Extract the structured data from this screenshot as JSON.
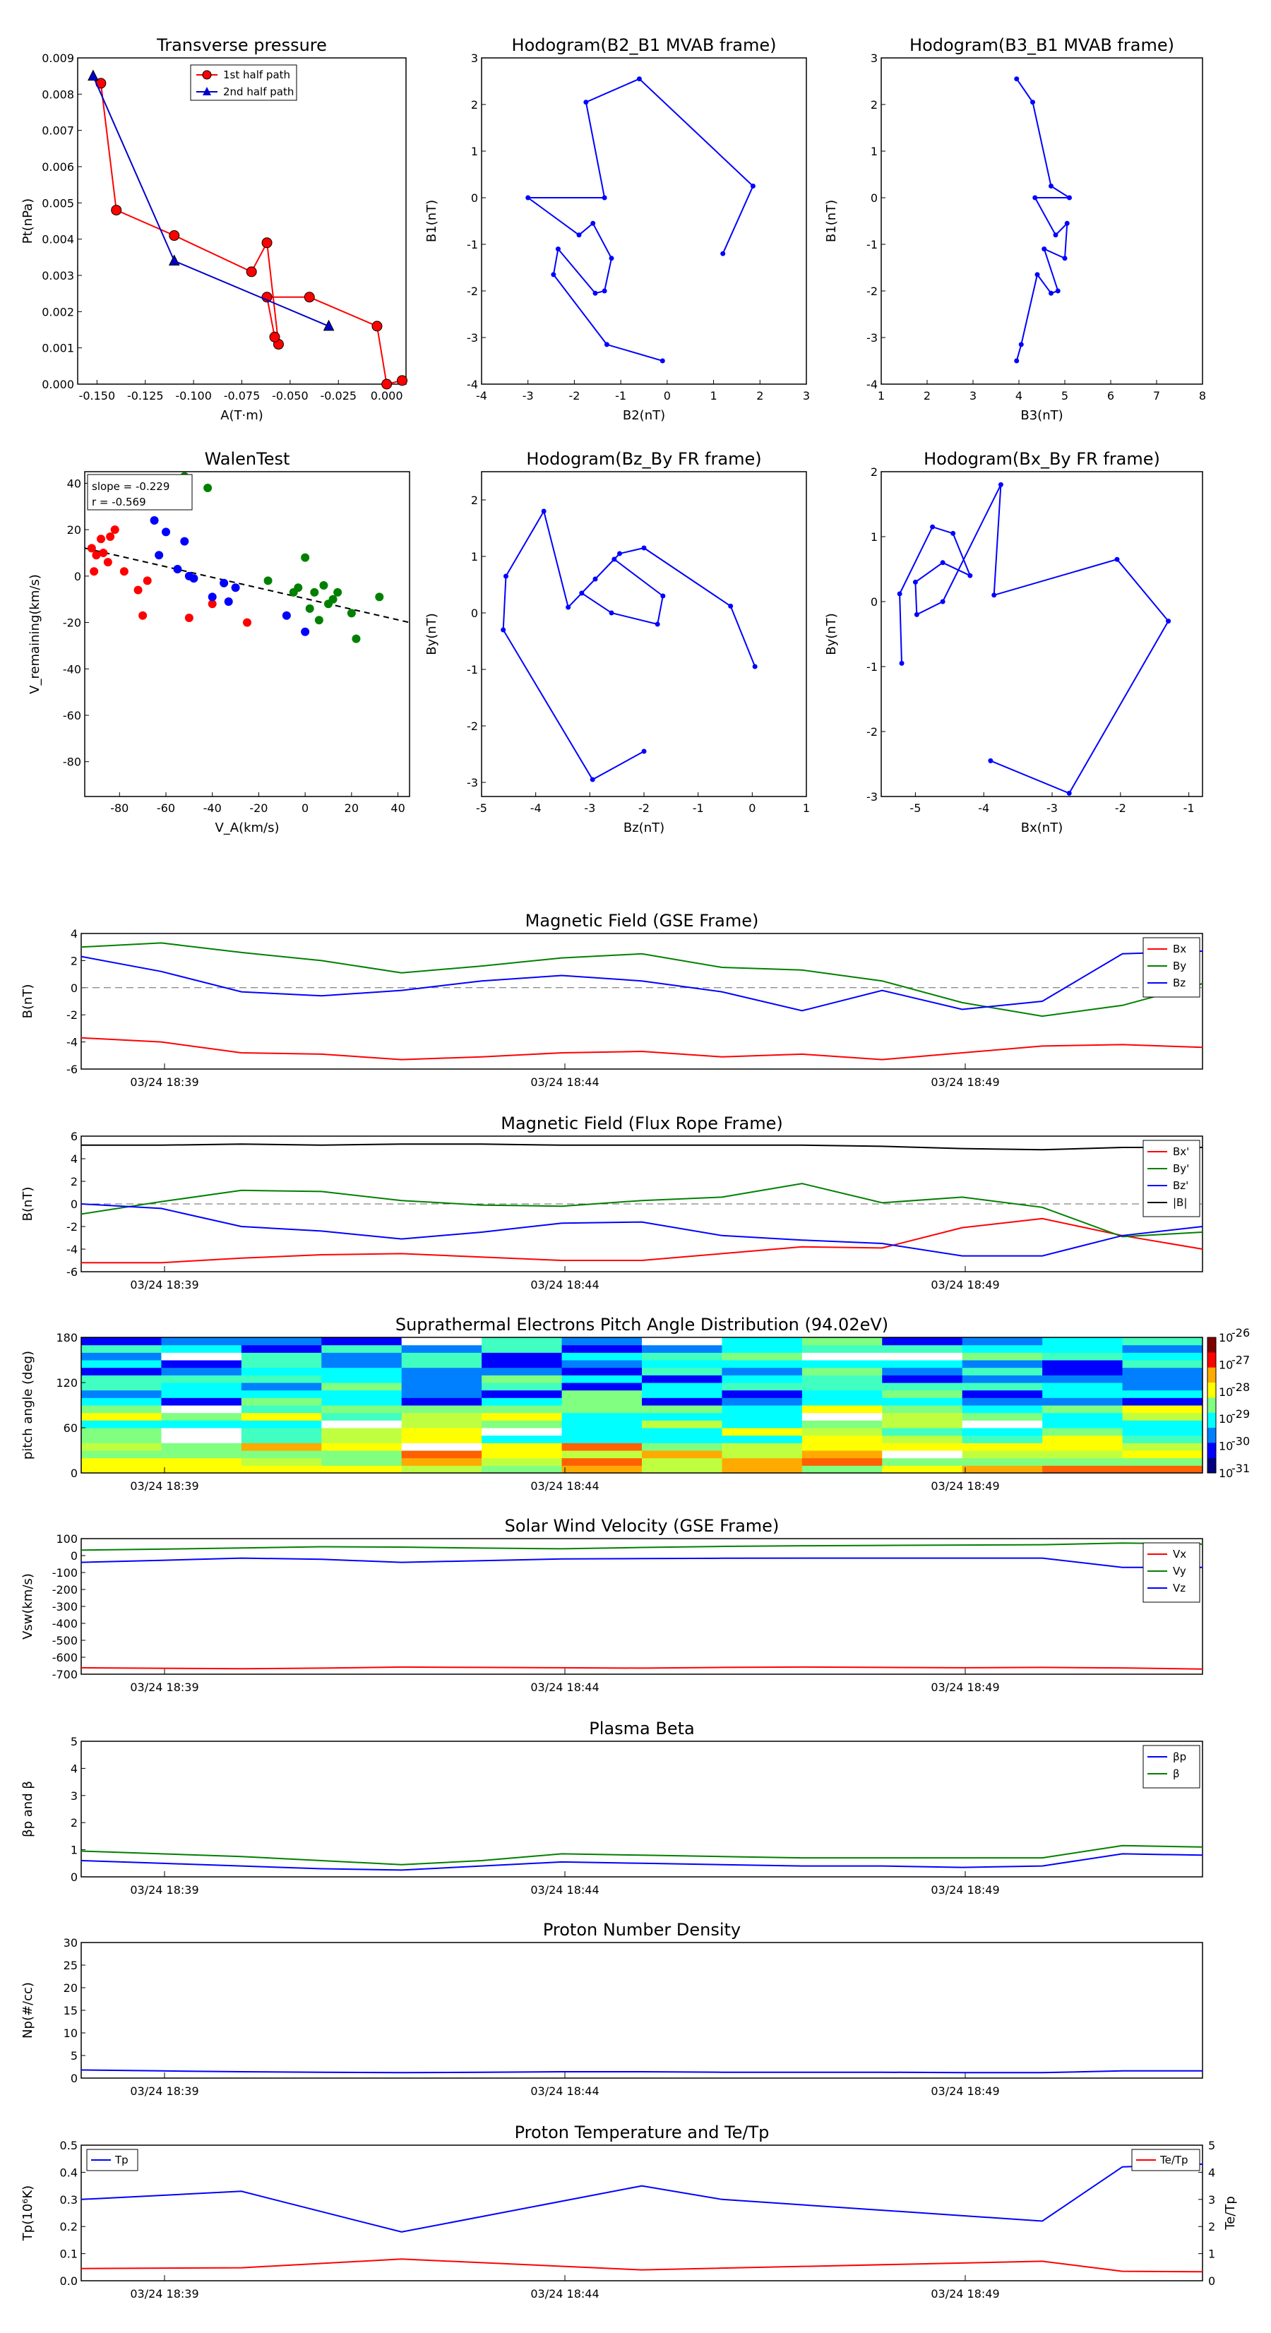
{
  "time_ticks": [
    "03/24 18:39",
    "03/24 18:44",
    "03/24 18:49"
  ],
  "charts": {
    "transverse_pressure": {
      "type": "scatter-line",
      "title": "Transverse pressure",
      "xlabel": "A(T·m)",
      "ylabel": "Pt(nPa)",
      "xlim": [
        -0.16,
        0.01
      ],
      "ylim": [
        0.0,
        0.009
      ],
      "xticks": [
        "-0.150",
        "-0.125",
        "-0.100",
        "-0.075",
        "-0.050",
        "-0.025",
        "0.000"
      ],
      "yticks": [
        "0.000",
        "0.001",
        "0.002",
        "0.003",
        "0.004",
        "0.005",
        "0.006",
        "0.007",
        "0.008",
        "0.009"
      ],
      "legend": [
        "1st half path",
        "2nd half path"
      ],
      "series": [
        {
          "name": "1st half path",
          "color": "#ff0000",
          "marker": "circle",
          "x": [
            -0.148,
            -0.14,
            -0.11,
            -0.07,
            -0.062,
            -0.056,
            -0.058,
            -0.062,
            -0.04,
            -0.005,
            0.0,
            0.008
          ],
          "y": [
            0.0083,
            0.0048,
            0.0041,
            0.0031,
            0.0039,
            0.0011,
            0.0013,
            0.0024,
            0.0024,
            0.0016,
            0.0,
            0.0001
          ]
        },
        {
          "name": "2nd half path",
          "color": "#0000cc",
          "marker": "triangle",
          "x": [
            -0.152,
            -0.11,
            -0.03
          ],
          "y": [
            0.0085,
            0.0034,
            0.0016
          ]
        }
      ]
    },
    "hodogram_b2_b1": {
      "type": "line",
      "title": "Hodogram(B2_B1 MVAB frame)",
      "xlabel": "B2(nT)",
      "ylabel": "B1(nT)",
      "xlim": [
        -4,
        3
      ],
      "ylim": [
        -4,
        3
      ],
      "xticks": [
        "-4",
        "-3",
        "-2",
        "-1",
        "0",
        "1",
        "2",
        "3"
      ],
      "yticks": [
        "-4",
        "-3",
        "-2",
        "-1",
        "0",
        "1",
        "2",
        "3"
      ],
      "x": [
        1.2,
        1.85,
        -0.6,
        -1.75,
        -1.35,
        -3.0,
        -1.9,
        -1.6,
        -1.2,
        -1.35,
        -1.55,
        -2.35,
        -2.45,
        -1.3,
        -0.1
      ],
      "y": [
        -1.2,
        0.25,
        2.55,
        2.05,
        0.0,
        0.0,
        -0.8,
        -0.55,
        -1.3,
        -2.0,
        -2.05,
        -1.1,
        -1.65,
        -3.15,
        -3.5
      ]
    },
    "hodogram_b3_b1": {
      "type": "line",
      "title": "Hodogram(B3_B1 MVAB frame)",
      "xlabel": "B3(nT)",
      "ylabel": "B1(nT)",
      "xlim": [
        1,
        8
      ],
      "ylim": [
        -4,
        3
      ],
      "xticks": [
        "1",
        "2",
        "3",
        "4",
        "5",
        "6",
        "7",
        "8"
      ],
      "yticks": [
        "-4",
        "-3",
        "-2",
        "-1",
        "0",
        "1",
        "2",
        "3"
      ],
      "x": [
        3.95,
        4.3,
        4.7,
        5.1,
        4.35,
        4.8,
        5.05,
        5.0,
        4.55,
        4.85,
        4.7,
        4.4,
        4.05,
        3.95
      ],
      "y": [
        2.55,
        2.05,
        0.25,
        0.0,
        0.0,
        -0.8,
        -0.55,
        -1.3,
        -1.1,
        -2.0,
        -2.05,
        -1.65,
        -3.15,
        -3.5
      ]
    },
    "walen_test": {
      "type": "scatter",
      "title": "WalenTest",
      "xlabel": "V_A(km/s)",
      "ylabel": "V_remaining(km/s)",
      "xlim": [
        -95,
        45
      ],
      "ylim": [
        -95,
        45
      ],
      "xticks": [
        "-80",
        "-60",
        "-40",
        "-20",
        "0",
        "20",
        "40"
      ],
      "yticks": [
        "-80",
        "-60",
        "-40",
        "-20",
        "0",
        "20",
        "40"
      ],
      "annotation": [
        "slope = -0.229",
        "r = -0.569"
      ],
      "fit_line": {
        "slope": -0.229,
        "intercept": -9.7
      },
      "series": [
        {
          "color": "#ff0000",
          "x": [
            -92,
            -91,
            -90,
            -88,
            -87,
            -85,
            -84,
            -82,
            -78,
            -72,
            -70,
            -68,
            -50,
            -40,
            -25
          ],
          "y": [
            12,
            2,
            9,
            16,
            10,
            6,
            17,
            20,
            2,
            -6,
            -17,
            -2,
            -18,
            -12,
            -20
          ]
        },
        {
          "color": "#0000ff",
          "x": [
            -65,
            -63,
            -60,
            -55,
            -52,
            -50,
            -48,
            -40,
            -35,
            -33,
            -30,
            -8,
            0
          ],
          "y": [
            24,
            9,
            19,
            3,
            15,
            0,
            -1,
            -9,
            -3,
            -11,
            -5,
            -17,
            -24
          ]
        },
        {
          "color": "#008000",
          "x": [
            -52,
            -42,
            -16,
            -5,
            -3,
            0,
            2,
            4,
            6,
            8,
            10,
            12,
            14,
            20,
            22,
            32
          ],
          "y": [
            43,
            38,
            -2,
            -7,
            -5,
            8,
            -14,
            -7,
            -19,
            -4,
            -12,
            -10,
            -7,
            -16,
            -27,
            -9
          ]
        }
      ]
    },
    "hodogram_bz_by": {
      "type": "line",
      "title": "Hodogram(Bz_By FR frame)",
      "xlabel": "Bz(nT)",
      "ylabel": "By(nT)",
      "xlim": [
        -5,
        1
      ],
      "ylim": [
        -3.25,
        2.5
      ],
      "xticks": [
        "-5",
        "-4",
        "-3",
        "-2",
        "-1",
        "0",
        "1"
      ],
      "yticks": [
        "-3",
        "-2",
        "-1",
        "0",
        "1",
        "2"
      ],
      "x": [
        0.05,
        -0.4,
        -2.0,
        -2.45,
        -2.9,
        -3.15,
        -2.6,
        -1.75,
        -1.65,
        -2.55,
        -3.4,
        -3.85,
        -4.55,
        -4.6,
        -2.95,
        -2.0
      ],
      "y": [
        -0.95,
        0.12,
        1.15,
        1.05,
        0.6,
        0.35,
        0.0,
        -0.2,
        0.3,
        0.95,
        0.1,
        1.8,
        0.65,
        -0.3,
        -2.95,
        -2.45
      ]
    },
    "hodogram_bx_by": {
      "type": "line",
      "title": "Hodogram(Bx_By FR frame)",
      "xlabel": "Bx(nT)",
      "ylabel": "By(nT)",
      "xlim": [
        -5.5,
        -0.8
      ],
      "ylim": [
        -3.0,
        2.0
      ],
      "xticks": [
        "-5",
        "-4",
        "-3",
        "-2",
        "-1"
      ],
      "yticks": [
        "-3",
        "-2",
        "-1",
        "0",
        "1",
        "2"
      ],
      "x": [
        -5.2,
        -5.23,
        -4.75,
        -4.45,
        -4.2,
        -4.6,
        -5.0,
        -4.98,
        -4.6,
        -3.75,
        -3.85,
        -2.05,
        -1.3,
        -2.75,
        -3.9
      ],
      "y": [
        -0.95,
        0.12,
        1.15,
        1.05,
        0.4,
        0.6,
        0.3,
        -0.2,
        0.0,
        1.8,
        0.1,
        0.65,
        -0.3,
        -2.95,
        -2.45
      ]
    },
    "magnetic_field_gse": {
      "type": "line",
      "title": "Magnetic Field (GSE Frame)",
      "ylabel": "B(nT)",
      "ylim": [
        -6,
        4
      ],
      "yticks": [
        "-6",
        "-4",
        "-2",
        "0",
        "2",
        "4"
      ],
      "x": [
        0,
        1,
        2,
        3,
        4,
        5,
        6,
        7,
        8,
        9,
        10,
        11,
        12,
        13,
        14
      ],
      "series": [
        {
          "name": "Bx",
          "color": "#ff0000",
          "values": [
            -3.7,
            -4.0,
            -4.8,
            -4.9,
            -5.3,
            -5.1,
            -4.8,
            -4.7,
            -5.1,
            -4.9,
            -5.3,
            -4.8,
            -4.3,
            -4.2,
            -4.4
          ]
        },
        {
          "name": "By",
          "color": "#008000",
          "values": [
            3.0,
            3.3,
            2.6,
            2.0,
            1.1,
            1.6,
            2.2,
            2.5,
            1.5,
            1.3,
            0.5,
            -1.1,
            -2.1,
            -1.3,
            0.3
          ]
        },
        {
          "name": "Bz",
          "color": "#0000ff",
          "values": [
            2.3,
            1.2,
            -0.3,
            -0.6,
            -0.2,
            0.5,
            0.9,
            0.5,
            -0.3,
            -1.7,
            -0.2,
            -1.6,
            -1.0,
            2.5,
            2.7
          ]
        }
      ]
    },
    "magnetic_field_flux_rope": {
      "type": "line",
      "title": "Magnetic Field (Flux Rope Frame)",
      "ylabel": "B(nT)",
      "ylim": [
        -6,
        6
      ],
      "yticks": [
        "-6",
        "-4",
        "-2",
        "0",
        "2",
        "4",
        "6"
      ],
      "x": [
        0,
        1,
        2,
        3,
        4,
        5,
        6,
        7,
        8,
        9,
        10,
        11,
        12,
        13,
        14
      ],
      "series": [
        {
          "name": "Bx'",
          "color": "#ff0000",
          "values": [
            -5.2,
            -5.2,
            -4.8,
            -4.5,
            -4.4,
            -4.7,
            -5.0,
            -5.0,
            -4.4,
            -3.8,
            -3.9,
            -2.1,
            -1.3,
            -2.8,
            -4.0
          ]
        },
        {
          "name": "By'",
          "color": "#008000",
          "values": [
            -0.9,
            0.2,
            1.2,
            1.1,
            0.3,
            -0.1,
            -0.2,
            0.3,
            0.6,
            1.8,
            0.1,
            0.6,
            -0.3,
            -2.9,
            -2.5
          ]
        },
        {
          "name": "Bz'",
          "color": "#0000ff",
          "values": [
            0.0,
            -0.4,
            -2.0,
            -2.4,
            -3.1,
            -2.5,
            -1.7,
            -1.6,
            -2.8,
            -3.2,
            -3.5,
            -4.6,
            -4.6,
            -2.8,
            -2.0
          ]
        },
        {
          "name": "|B|",
          "color": "#000000",
          "values": [
            5.2,
            5.2,
            5.3,
            5.2,
            5.3,
            5.3,
            5.2,
            5.2,
            5.2,
            5.2,
            5.1,
            4.9,
            4.8,
            5.0,
            5.0
          ]
        }
      ]
    },
    "pitch_angle": {
      "type": "heatmap",
      "title": "Suprathermal Electrons Pitch Angle Distribution (94.02eV)",
      "ylabel": "pitch angle (deg)",
      "ylim": [
        0,
        180
      ],
      "yticks": [
        "0",
        "60",
        "120",
        "180"
      ],
      "colorbar_ticks": [
        "10",
        "10",
        "10",
        "10",
        "10",
        "10"
      ],
      "colorbar_exps": [
        "-26",
        "-27",
        "-28",
        "-29",
        "-30",
        "-31"
      ],
      "colorbar_colors": [
        "#800000",
        "#ff0000",
        "#ffaa00",
        "#ffff00",
        "#80ff80",
        "#00ffff",
        "#0080ff",
        "#0000ff",
        "#000080"
      ],
      "columns": 14,
      "rows": 18
    },
    "solar_wind_velocity": {
      "type": "line",
      "title": "Solar Wind Velocity (GSE Frame)",
      "ylabel": "Vsw(km/s)",
      "ylim": [
        -700,
        100
      ],
      "yticks": [
        "-700",
        "-600",
        "-500",
        "-400",
        "-300",
        "-200",
        "-100",
        "0",
        "100"
      ],
      "x": [
        0,
        1,
        2,
        3,
        4,
        5,
        6,
        7,
        8,
        9,
        10,
        11,
        12,
        13,
        14
      ],
      "series": [
        {
          "name": "Vx",
          "color": "#ff0000",
          "values": [
            -662,
            -665,
            -668,
            -664,
            -658,
            -660,
            -662,
            -664,
            -660,
            -658,
            -660,
            -662,
            -660,
            -663,
            -670
          ]
        },
        {
          "name": "Vy",
          "color": "#008000",
          "values": [
            32,
            38,
            45,
            52,
            50,
            44,
            40,
            48,
            54,
            58,
            60,
            62,
            64,
            74,
            68
          ]
        },
        {
          "name": "Vz",
          "color": "#0000ff",
          "values": [
            -40,
            -28,
            -15,
            -22,
            -40,
            -30,
            -20,
            -18,
            -16,
            -15,
            -15,
            -15,
            -15,
            -70,
            -70
          ]
        }
      ]
    },
    "plasma_beta": {
      "type": "line",
      "title": "Plasma Beta",
      "ylabel": "βp and β",
      "ylim": [
        0,
        5
      ],
      "yticks": [
        "0",
        "1",
        "2",
        "3",
        "4",
        "5"
      ],
      "x": [
        0,
        1,
        2,
        3,
        4,
        5,
        6,
        7,
        8,
        9,
        10,
        11,
        12,
        13,
        14
      ],
      "series": [
        {
          "name": "βp",
          "color": "#0000ff",
          "values": [
            0.6,
            0.5,
            0.4,
            0.3,
            0.25,
            0.4,
            0.55,
            0.5,
            0.45,
            0.4,
            0.4,
            0.35,
            0.4,
            0.85,
            0.8
          ]
        },
        {
          "name": "β",
          "color": "#008000",
          "values": [
            0.95,
            0.85,
            0.75,
            0.6,
            0.45,
            0.6,
            0.85,
            0.8,
            0.75,
            0.7,
            0.7,
            0.7,
            0.7,
            1.15,
            1.1
          ]
        }
      ]
    },
    "proton_density": {
      "type": "line",
      "title": "Proton Number Density",
      "ylabel": "Np(#/cc)",
      "ylim": [
        0,
        30
      ],
      "yticks": [
        "0",
        "5",
        "10",
        "15",
        "20",
        "25",
        "30"
      ],
      "x": [
        0,
        1,
        2,
        3,
        4,
        5,
        6,
        7,
        8,
        9,
        10,
        11,
        12,
        13,
        14
      ],
      "series": [
        {
          "name": "Np",
          "color": "#0000ff",
          "values": [
            1.8,
            1.6,
            1.4,
            1.3,
            1.2,
            1.3,
            1.4,
            1.4,
            1.3,
            1.3,
            1.3,
            1.2,
            1.2,
            1.6,
            1.6
          ]
        }
      ]
    },
    "proton_temperature": {
      "type": "line",
      "title": "Proton Temperature and Te/Tp",
      "ylabel": "Tp(10⁶K)",
      "ylabel_right": "Te/Tp",
      "ylim": [
        0,
        0.5
      ],
      "ylim_right": [
        0,
        5
      ],
      "yticks": [
        "0.0",
        "0.1",
        "0.2",
        "0.3",
        "0.4",
        "0.5"
      ],
      "yticks_right": [
        "0",
        "1",
        "2",
        "3",
        "4",
        "5"
      ],
      "x": [
        0,
        2,
        4,
        7,
        8,
        12,
        13,
        14
      ],
      "series": [
        {
          "name": "Tp",
          "color": "#0000ff",
          "axis": "left",
          "values": [
            0.3,
            0.33,
            0.18,
            0.35,
            0.3,
            0.22,
            0.42,
            0.43
          ]
        },
        {
          "name": "Te/Tp",
          "color": "#ff0000",
          "axis": "right",
          "x": [
            0,
            2,
            4,
            7,
            12,
            13,
            14
          ],
          "values": [
            0.45,
            0.48,
            0.8,
            0.4,
            0.72,
            0.35,
            0.33
          ]
        }
      ]
    }
  }
}
